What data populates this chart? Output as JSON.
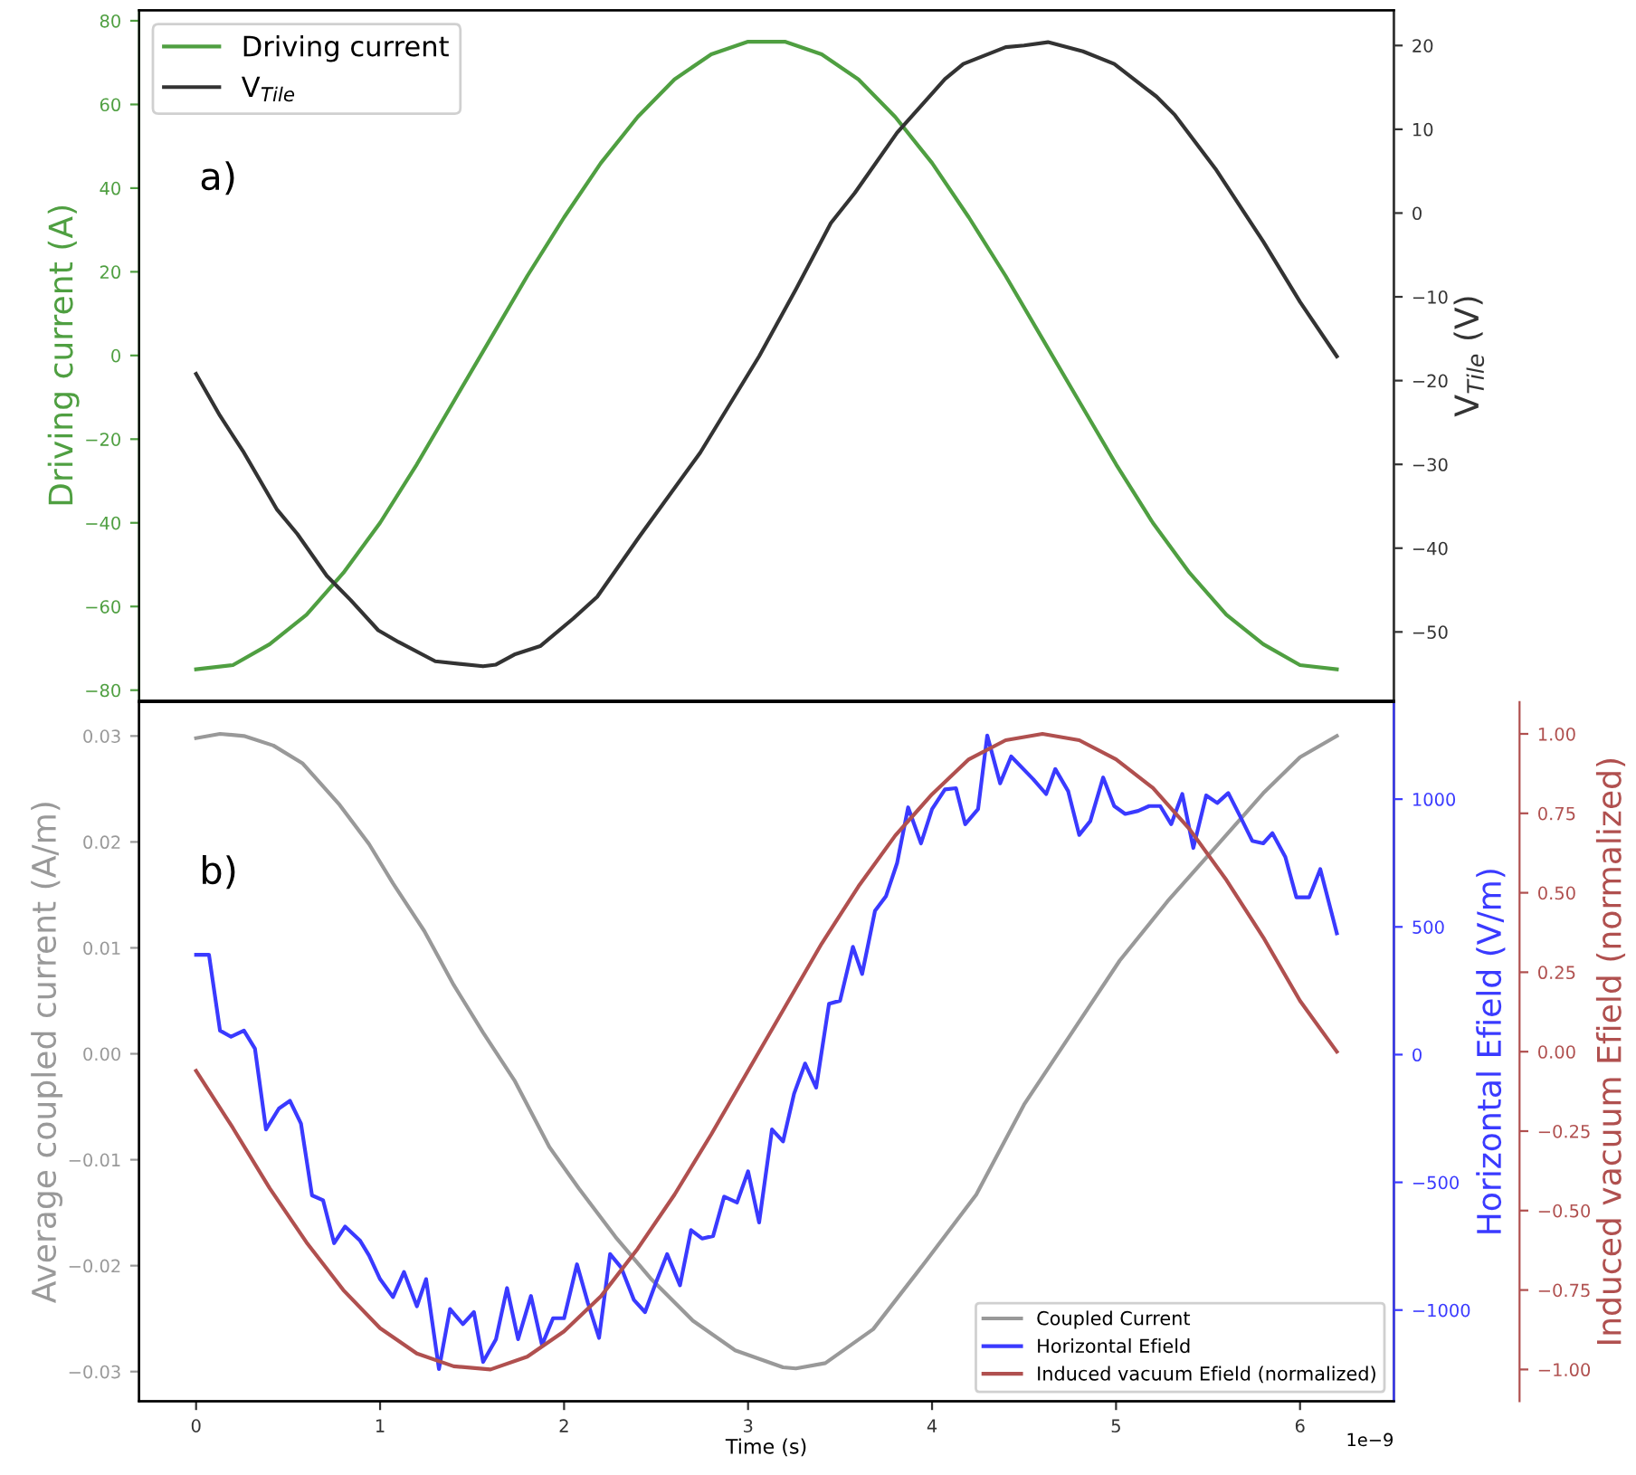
{
  "chart_data": [
    {
      "type": "line",
      "ylabel": "Driving current (A)",
      "y2label": "V$_{Tile}$ (V)",
      "annotations": [
        "a)"
      ],
      "legend": "top left",
      "tick_labels": "y",
      "xlim": [
        -0.31,
        6.51
      ],
      "ylim": [
        -82.5,
        82.5
      ],
      "yticks": [
        -80,
        -60,
        -40,
        -20,
        0,
        20,
        40,
        60,
        80
      ],
      "y2lim": [
        -58.2,
        24.2
      ],
      "y2ticks": [
        -50,
        -40,
        -30,
        -20,
        -10,
        0,
        10,
        20
      ],
      "series": [
        {
          "name": "Driving current",
          "color": "#4f9f41",
          "axis": "y",
          "x": [
            0,
            0.2,
            0.4,
            0.6,
            0.8,
            1.0,
            1.2,
            1.4,
            1.6,
            1.8,
            2.0,
            2.2,
            2.4,
            2.6,
            2.8,
            3.0,
            3.2,
            3.4,
            3.6,
            3.8,
            4.0,
            4.2,
            4.4,
            4.6,
            4.8,
            5.0,
            5.2,
            5.4,
            5.6,
            5.8,
            6.0,
            6.2
          ],
          "values": [
            -75,
            -74,
            -69,
            -62,
            -52,
            -40,
            -26,
            -11,
            4,
            19,
            33,
            46,
            57,
            66,
            72,
            75,
            75,
            72,
            66,
            57,
            46,
            33,
            19,
            4,
            -11,
            -26,
            -40,
            -52,
            -62,
            -69,
            -74,
            -75
          ]
        },
        {
          "name": "V$_{Tile}$",
          "color": "#333333",
          "axis": "y2",
          "x": [
            0,
            0.13,
            0.26,
            0.44,
            0.55,
            0.71,
            0.84,
            0.99,
            1.1,
            1.3,
            1.56,
            1.63,
            1.73,
            1.87,
            2.05,
            2.18,
            2.41,
            2.74,
            3.06,
            3.26,
            3.45,
            3.58,
            3.81,
            4.07,
            4.17,
            4.4,
            4.5,
            4.63,
            4.82,
            4.99,
            5.22,
            5.32,
            5.54,
            5.8,
            6.0,
            6.2
          ],
          "values": [
            -19.2,
            -24.2,
            -28.6,
            -35.4,
            -38.3,
            -43.3,
            -46.2,
            -49.8,
            -51.2,
            -53.5,
            -54.1,
            -53.9,
            -52.7,
            -51.7,
            -48.4,
            -45.8,
            -38.6,
            -28.6,
            -17.1,
            -9.1,
            -1.2,
            2.4,
            9.6,
            16.0,
            17.8,
            19.8,
            20.0,
            20.4,
            19.3,
            17.8,
            13.9,
            11.7,
            5.3,
            -3.4,
            -10.6,
            -17.1
          ]
        }
      ]
    },
    {
      "type": "line",
      "xlabel": "Time (s)",
      "ylabel": "Average coupled current (A/m)",
      "y2label": "Horizontal Efield (V/m)",
      "y3label": "Induced vacuum Efield (normalized)",
      "annotations": [
        "b)",
        "1e−9"
      ],
      "legend": "bottom right",
      "xlim": [
        -0.31,
        6.51
      ],
      "xticks": [
        0,
        1,
        2,
        3,
        4,
        5,
        6
      ],
      "ylim": [
        -0.0328,
        0.0332
      ],
      "yticks": [
        {
          "value": -0.03,
          "label": "−0.03"
        },
        {
          "value": -0.02,
          "label": "−0.02"
        },
        {
          "value": -0.01,
          "label": "−0.01"
        },
        {
          "value": 0,
          "label": "0.00"
        },
        {
          "value": 0.01,
          "label": "0.01"
        },
        {
          "value": 0.02,
          "label": "0.02"
        },
        {
          "value": 0.03,
          "label": "0.03"
        }
      ],
      "y2lim": [
        -1357,
        1380
      ],
      "y2ticks": [
        -1000,
        -500,
        0,
        500,
        1000
      ],
      "y3lim": [
        -1.1,
        1.1
      ],
      "y3ticks": [
        {
          "value": -1,
          "label": "−1.00"
        },
        {
          "value": -0.75,
          "label": "−0.75"
        },
        {
          "value": -0.5,
          "label": "−0.50"
        },
        {
          "value": -0.25,
          "label": "−0.25"
        },
        {
          "value": 0,
          "label": "0.00"
        },
        {
          "value": 0.25,
          "label": "0.25"
        },
        {
          "value": 0.5,
          "label": "0.50"
        },
        {
          "value": 0.75,
          "label": "0.75"
        },
        {
          "value": 1,
          "label": "1.00"
        }
      ],
      "series": [
        {
          "name": "Coupled Current",
          "color": "#999999",
          "axis": "y",
          "x": [
            0,
            0.13,
            0.26,
            0.42,
            0.58,
            0.78,
            0.94,
            1.07,
            1.24,
            1.4,
            1.56,
            1.73,
            1.92,
            2.08,
            2.28,
            2.47,
            2.7,
            2.93,
            3.19,
            3.26,
            3.42,
            3.68,
            3.97,
            4.24,
            4.5,
            4.76,
            5.02,
            5.28,
            5.54,
            5.8,
            6.0,
            6.2
          ],
          "values": [
            0.0298,
            0.0302,
            0.03,
            0.0291,
            0.0274,
            0.0235,
            0.0198,
            0.0161,
            0.0116,
            0.0065,
            0.002,
            -0.0025,
            -0.0088,
            -0.0127,
            -0.0173,
            -0.0212,
            -0.0252,
            -0.028,
            -0.0296,
            -0.0297,
            -0.0292,
            -0.026,
            -0.0195,
            -0.0133,
            -0.0048,
            0.002,
            0.0088,
            0.0144,
            0.0195,
            0.0246,
            0.028,
            0.03
          ]
        },
        {
          "name": "Horizontal Efield",
          "color": "#3a3aff",
          "axis": "y2",
          "x": [
            0,
            0.07,
            0.13,
            0.19,
            0.26,
            0.32,
            0.38,
            0.45,
            0.51,
            0.57,
            0.63,
            0.69,
            0.75,
            0.81,
            0.89,
            0.94,
            1.0,
            1.07,
            1.13,
            1.2,
            1.25,
            1.32,
            1.38,
            1.45,
            1.51,
            1.56,
            1.63,
            1.69,
            1.75,
            1.82,
            1.88,
            1.94,
            2.0,
            2.07,
            2.13,
            2.19,
            2.25,
            2.31,
            2.38,
            2.44,
            2.5,
            2.56,
            2.63,
            2.69,
            2.75,
            2.81,
            2.87,
            2.94,
            3.0,
            3.06,
            3.13,
            3.19,
            3.25,
            3.31,
            3.37,
            3.44,
            3.5,
            3.57,
            3.62,
            3.69,
            3.75,
            3.81,
            3.87,
            3.94,
            4.0,
            4.07,
            4.13,
            4.18,
            4.25,
            4.3,
            4.37,
            4.43,
            4.55,
            4.62,
            4.67,
            4.74,
            4.8,
            4.86,
            4.93,
            4.99,
            5.05,
            5.12,
            5.18,
            5.24,
            5.3,
            5.36,
            5.42,
            5.49,
            5.55,
            5.61,
            5.68,
            5.74,
            5.8,
            5.85,
            5.92,
            5.98,
            6.05,
            6.11,
            6.2
          ],
          "values": [
            391,
            391,
            94,
            70,
            94,
            23,
            -293,
            -211,
            -181,
            -270,
            -551,
            -570,
            -738,
            -673,
            -727,
            -786,
            -879,
            -949,
            -851,
            -985,
            -879,
            -1231,
            -996,
            -1055,
            -1008,
            -1203,
            -1114,
            -914,
            -1114,
            -945,
            -1137,
            -1032,
            -1032,
            -821,
            -973,
            -1109,
            -781,
            -833,
            -961,
            -1008,
            -891,
            -781,
            -903,
            -687,
            -720,
            -710,
            -556,
            -579,
            -457,
            -657,
            -293,
            -340,
            -153,
            -35,
            -129,
            199,
            211,
            422,
            316,
            563,
            621,
            750,
            968,
            827,
            961,
            1038,
            1043,
            902,
            961,
            1249,
            1062,
            1167,
            1078,
            1020,
            1118,
            1031,
            860,
            914,
            1085,
            973,
            942,
            954,
            973,
            973,
            902,
            1020,
            809,
            1015,
            985,
            1024,
            925,
            837,
            827,
            867,
            774,
            616,
            616,
            726,
            475
          ]
        },
        {
          "name": "Induced vacuum Efield (normalized)",
          "color": "#b0504f",
          "axis": "y3",
          "x": [
            0,
            0.2,
            0.4,
            0.6,
            0.8,
            1.0,
            1.2,
            1.4,
            1.6,
            1.8,
            2.0,
            2.2,
            2.4,
            2.6,
            2.8,
            3.0,
            3.2,
            3.4,
            3.6,
            3.8,
            4.0,
            4.2,
            4.4,
            4.6,
            4.8,
            5.0,
            5.2,
            5.4,
            5.6,
            5.8,
            6.0,
            6.2
          ],
          "values": [
            -0.06,
            -0.24,
            -0.43,
            -0.6,
            -0.75,
            -0.87,
            -0.95,
            -0.99,
            -1.0,
            -0.96,
            -0.88,
            -0.77,
            -0.62,
            -0.45,
            -0.26,
            -0.06,
            0.14,
            0.34,
            0.52,
            0.68,
            0.81,
            0.92,
            0.98,
            1.0,
            0.98,
            0.92,
            0.83,
            0.7,
            0.54,
            0.36,
            0.16,
            0.0
          ]
        }
      ]
    }
  ]
}
